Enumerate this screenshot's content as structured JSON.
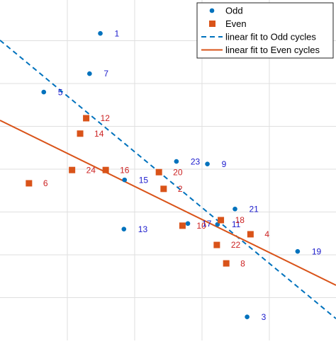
{
  "chart_data": {
    "type": "scatter",
    "grid": true,
    "tick_labels": false,
    "legend": "upper right",
    "xlim": [
      0,
      4.99
    ],
    "ylim": [
      0,
      7.95
    ],
    "xticks": [
      1,
      2,
      3,
      4
    ],
    "yticks": [
      1,
      2,
      3,
      4,
      5,
      6,
      7
    ],
    "series": [
      {
        "name": "Odd",
        "kind": "points",
        "marker": "circle",
        "color": "#0072bd",
        "label_color": "#1a1acc",
        "x": [
          1.49,
          1.33,
          0.65,
          2.62,
          3.08,
          1.85,
          3.49,
          2.79,
          3.23,
          1.84,
          4.42,
          3.67
        ],
        "values": [
          7.17,
          6.23,
          5.8,
          4.18,
          4.12,
          3.75,
          3.07,
          2.73,
          2.71,
          2.6,
          2.08,
          0.55
        ],
        "point_labels": [
          1,
          7,
          5,
          23,
          9,
          15,
          21,
          17,
          11,
          13,
          19,
          3
        ]
      },
      {
        "name": "Even",
        "kind": "points",
        "marker": "square",
        "color": "#d95319",
        "label_color": "#cc2222",
        "x": [
          1.28,
          1.19,
          0.43,
          1.07,
          1.57,
          2.36,
          2.43,
          3.28,
          2.71,
          3.72,
          3.22,
          3.36
        ],
        "values": [
          5.19,
          4.83,
          3.67,
          3.98,
          3.98,
          3.93,
          3.54,
          2.81,
          2.68,
          2.48,
          2.23,
          1.8
        ],
        "point_labels": [
          12,
          14,
          6,
          24,
          16,
          20,
          2,
          18,
          10,
          4,
          22,
          8
        ]
      },
      {
        "name": "linear fit to Odd cycles",
        "kind": "line",
        "dash": true,
        "color": "#0072bd",
        "x": [
          0,
          4.99
        ],
        "values": [
          7.01,
          0.51
        ]
      },
      {
        "name": "linear fit to Even cycles",
        "kind": "line",
        "dash": false,
        "color": "#d95319",
        "x": [
          0,
          4.99
        ],
        "values": [
          5.14,
          1.29
        ]
      }
    ]
  }
}
